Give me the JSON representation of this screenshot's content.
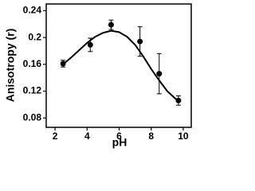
{
  "chart_data": {
    "type": "scatter",
    "x_label": "pH",
    "y_label": "Anisotropy (r)",
    "x": [
      2.5,
      4.2,
      5.5,
      7.3,
      8.5,
      9.7
    ],
    "values": [
      0.161,
      0.189,
      0.219,
      0.194,
      0.146,
      0.106
    ],
    "errors": [
      0.005,
      0.01,
      0.007,
      0.022,
      0.03,
      0.007
    ],
    "curve": {
      "x": [
        2.5,
        3.0,
        3.5,
        4.0,
        4.5,
        5.0,
        5.5,
        6.0,
        6.5,
        7.0,
        7.5,
        8.0,
        8.5,
        9.0,
        9.5,
        9.7
      ],
      "values": [
        0.16,
        0.17,
        0.181,
        0.192,
        0.201,
        0.207,
        0.21,
        0.208,
        0.201,
        0.189,
        0.172,
        0.153,
        0.136,
        0.12,
        0.109,
        0.106
      ]
    },
    "color": "#000000",
    "xlim": [
      1.45,
      10.5
    ],
    "xticks": [
      2,
      4,
      6,
      8,
      10
    ],
    "ylim": [
      0.066,
      0.25
    ],
    "yticks": [
      0.08,
      0.12,
      0.16,
      0.2,
      0.24
    ]
  }
}
